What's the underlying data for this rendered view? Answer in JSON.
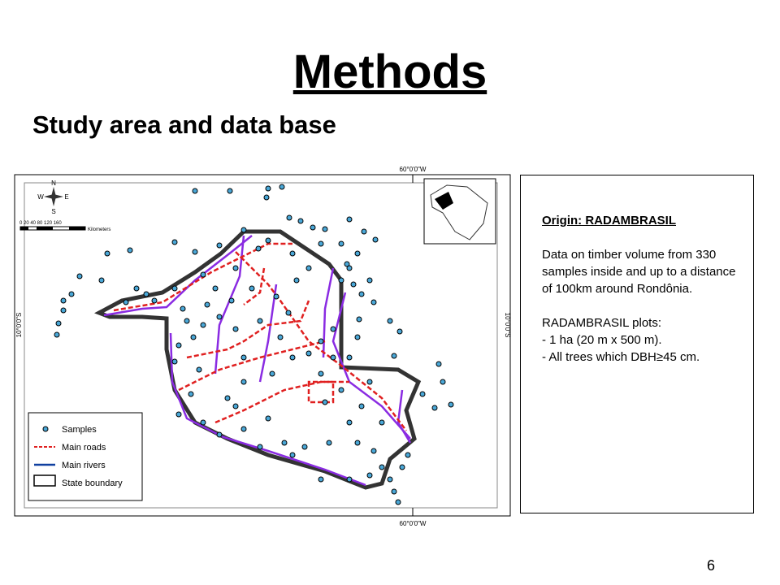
{
  "header": {
    "title": "Methods",
    "subtitle": "Study area and data base"
  },
  "map": {
    "top_label": "60°0'0\"W",
    "bottom_label": "60°0'0\"W",
    "left_label": "10°0'0\"S",
    "right_label": "10°0'0\"S",
    "compass": {
      "n": "N",
      "s": "S",
      "w": "W",
      "e": "E"
    },
    "scale": {
      "ticks": "0  20 40    80    120    160",
      "unit": "Kilometers"
    },
    "legend": [
      "Samples",
      "Main roads",
      "Main rivers",
      "State boundary"
    ]
  },
  "info": {
    "heading": "Origin: RADAMBRASIL",
    "paragraph": "Data on timber volume from 330 samples inside and up to a distance of 100km around Rondônia.",
    "plots_heading": "RADAMBRASIL plots:",
    "items": [
      "- 1 ha (20 m x 500 m).",
      "- All trees which DBH≥45 cm."
    ]
  },
  "page_number": "6"
}
